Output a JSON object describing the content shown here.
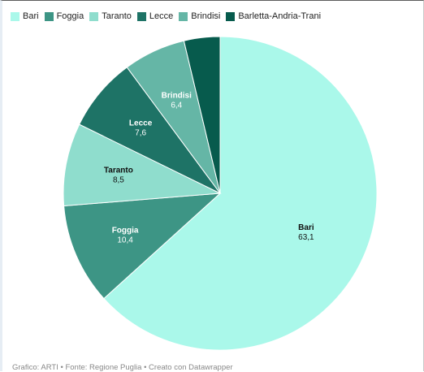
{
  "chart_data": {
    "type": "pie",
    "categories": [
      "Bari",
      "Foggia",
      "Taranto",
      "Lecce",
      "Brindisi",
      "Barletta-Andria-Trani"
    ],
    "values": [
      63.1,
      10.4,
      8.5,
      7.6,
      6.4,
      3.7
    ],
    "labels": [
      "63,1",
      "10,4",
      "8,5",
      "7,6",
      "6,4",
      ""
    ],
    "colors": [
      "#aaf8ea",
      "#3d9585",
      "#8fddcd",
      "#1e7366",
      "#65b6a6",
      "#075b4d"
    ],
    "label_colors": [
      "#111111",
      "#ffffff",
      "#111111",
      "#ffffff",
      "#ffffff",
      "#ffffff"
    ],
    "legend": "top-left",
    "start_angle_deg": 0,
    "direction": "clockwise"
  },
  "legend": {
    "items": [
      {
        "label": "Bari",
        "color": "#aaf8ea"
      },
      {
        "label": "Foggia",
        "color": "#3d9585"
      },
      {
        "label": "Taranto",
        "color": "#8fddcd"
      },
      {
        "label": "Lecce",
        "color": "#1e7366"
      },
      {
        "label": "Brindisi",
        "color": "#65b6a6"
      },
      {
        "label": "Barletta-Andria-Trani",
        "color": "#075b4d"
      }
    ]
  },
  "footer": {
    "text": "Grafico: ARTI • Fonte: Regione Puglia • Creato con Datawrapper"
  }
}
